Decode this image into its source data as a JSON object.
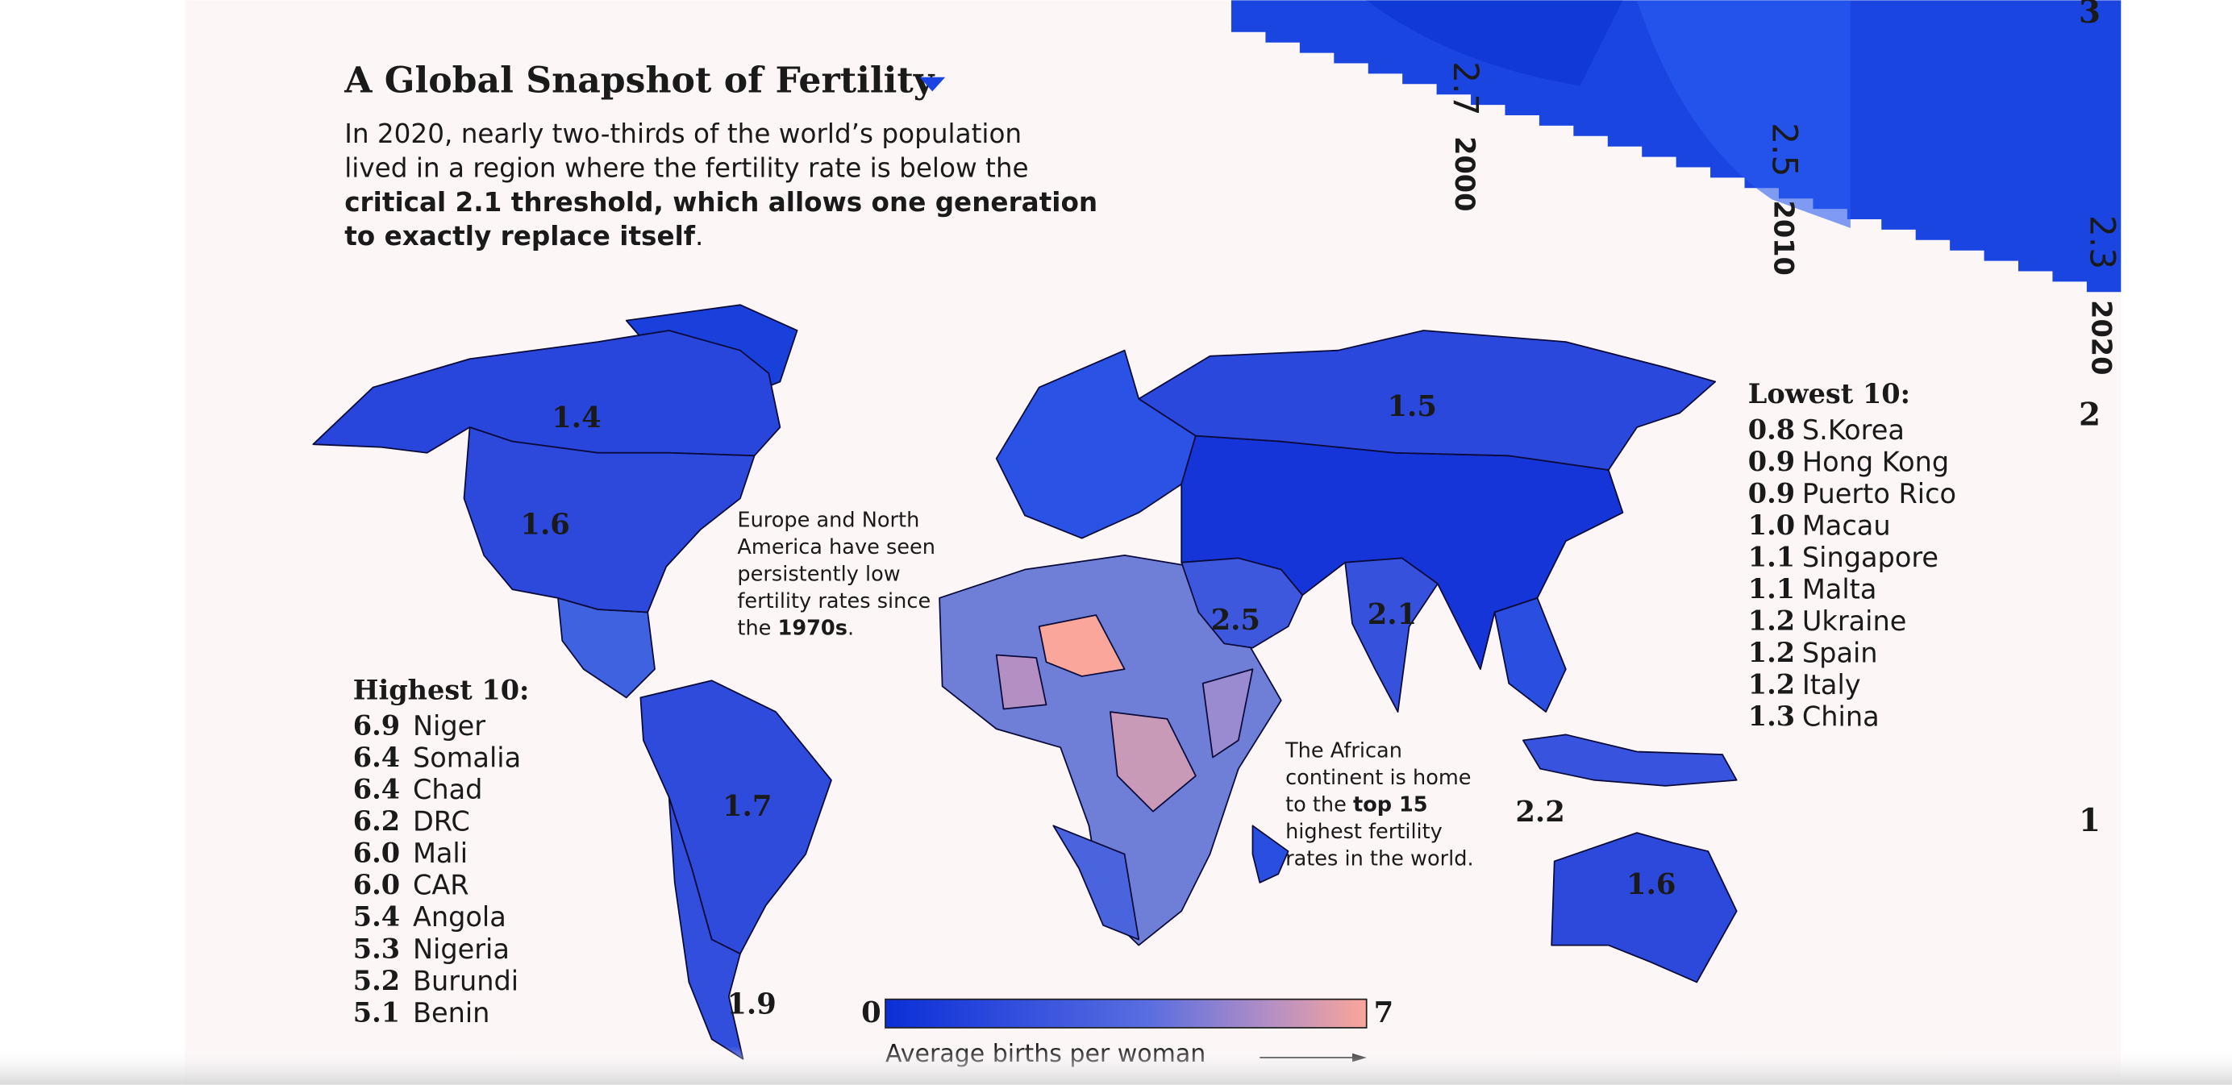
{
  "header": {
    "title": "A Global Snapshot of Fertility",
    "description": [
      [
        {
          "text": "In 2020, nearly two-thirds of the world’s population"
        }
      ],
      [
        {
          "text": "lived in a region where the fertility rate is below the"
        }
      ],
      [
        {
          "text": "critical 2.1 threshold, which allows one generation",
          "bold": true
        }
      ],
      [
        {
          "text": "to exactly replace itself",
          "bold": true
        },
        {
          "text": "."
        }
      ]
    ]
  },
  "timeline": {
    "points": [
      {
        "value": "2.7",
        "year": "2000"
      },
      {
        "value": "2.5",
        "year": "2010"
      },
      {
        "value": "2.3",
        "year": "2020"
      }
    ],
    "axis": [
      "3",
      "2",
      "1"
    ]
  },
  "map": {
    "regions": [
      {
        "value": 1.4
      },
      {
        "value": 1.6
      },
      {
        "value": 1.7
      },
      {
        "value": 1.9
      },
      {
        "value": 1.5
      },
      {
        "value": 2.5
      },
      {
        "value": 2.1
      },
      {
        "value": 2.2
      },
      {
        "value": 1.6
      }
    ]
  },
  "annotations": [
    [
      [
        {
          "text": "Europe and North"
        }
      ],
      [
        {
          "text": "America have seen"
        }
      ],
      [
        {
          "text": "persistently low"
        }
      ],
      [
        {
          "text": "fertility rates since"
        }
      ],
      [
        {
          "text": "the "
        },
        {
          "text": "1970s",
          "bold": true
        },
        {
          "text": "."
        }
      ]
    ],
    [
      [
        {
          "text": "The African"
        }
      ],
      [
        {
          "text": "continent is home"
        }
      ],
      [
        {
          "text": "to the "
        },
        {
          "text": "top 15",
          "bold": true
        }
      ],
      [
        {
          "text": "highest fertility"
        }
      ],
      [
        {
          "text": "rates in the world."
        }
      ]
    ]
  ],
  "highest": {
    "heading": "Highest 10:",
    "items": [
      {
        "rate": "6.9",
        "country": "Niger"
      },
      {
        "rate": "6.4",
        "country": "Somalia"
      },
      {
        "rate": "6.4",
        "country": "Chad"
      },
      {
        "rate": "6.2",
        "country": "DRC"
      },
      {
        "rate": "6.0",
        "country": "Mali"
      },
      {
        "rate": "6.0",
        "country": "CAR"
      },
      {
        "rate": "5.4",
        "country": "Angola"
      },
      {
        "rate": "5.3",
        "country": "Nigeria"
      },
      {
        "rate": "5.2",
        "country": "Burundi"
      },
      {
        "rate": "5.1",
        "country": "Benin"
      }
    ]
  },
  "lowest": {
    "heading": "Lowest 10:",
    "items": [
      {
        "rate": "0.8",
        "country": "S.Korea"
      },
      {
        "rate": "0.9",
        "country": "Hong Kong"
      },
      {
        "rate": "0.9",
        "country": "Puerto Rico"
      },
      {
        "rate": "1.0",
        "country": "Macau"
      },
      {
        "rate": "1.1",
        "country": "Singapore"
      },
      {
        "rate": "1.1",
        "country": "Malta"
      },
      {
        "rate": "1.2",
        "country": "Ukraine"
      },
      {
        "rate": "1.2",
        "country": "Spain"
      },
      {
        "rate": "1.2",
        "country": "Italy"
      },
      {
        "rate": "1.3",
        "country": "China"
      }
    ]
  },
  "legend": {
    "min": 0,
    "max": 7,
    "caption": "Average births per woman"
  }
}
